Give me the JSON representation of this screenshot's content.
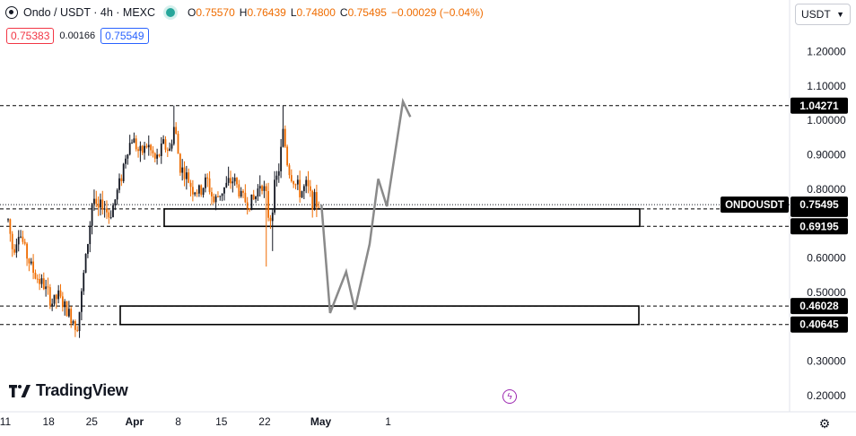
{
  "header": {
    "symbol": "Ondo / USDT · 4h · MEXC",
    "ohlc": [
      {
        "k": "O",
        "v": "0.75570"
      },
      {
        "k": "H",
        "v": "0.76439"
      },
      {
        "k": "L",
        "v": "0.74800"
      },
      {
        "k": "C",
        "v": "0.75495"
      },
      {
        "k": "",
        "v": "−0.00029 (−0.04%)"
      }
    ],
    "bid": "0.75383",
    "spread": "0.00166",
    "ask": "0.75549"
  },
  "currency_select": {
    "value": "USDT"
  },
  "branding": {
    "logo_text": "TradingView"
  },
  "colors": {
    "up": "#131722",
    "down": "#ef6c00",
    "zone": "#000000",
    "projection": "#8a8a8a"
  },
  "icons": {
    "symbol": "ondo-coin-icon",
    "settings": "gear-icon",
    "flash": "lightning-icon"
  },
  "chart_data": {
    "type": "candlestick",
    "symbol": "ONDOUSDT",
    "timeframe": "4h",
    "ylim": [
      0.17,
      1.26
    ],
    "y_ticks": [
      "1.20000",
      "1.10000",
      "1.00000",
      "0.90000",
      "0.80000",
      "0.70000",
      "0.60000",
      "0.50000",
      "0.40000",
      "0.30000",
      "0.20000"
    ],
    "x_ticks": [
      "11",
      "18",
      "25",
      "Apr",
      "8",
      "15",
      "22",
      "May",
      "1"
    ],
    "last_price": 0.75495,
    "price_label": "ONDOUSDT",
    "levels": [
      1.04271,
      0.74252,
      0.69195,
      0.46028,
      0.40645
    ],
    "level_labels": [
      "1.04271",
      "0.74252",
      "0.69195",
      "0.46028",
      "0.40645"
    ],
    "last_price_label": "0.75495",
    "zones": [
      {
        "top": 0.74252,
        "bottom": 0.69195
      },
      {
        "top": 0.46028,
        "bottom": 0.40645
      }
    ],
    "price_path": [
      [
        0.22,
        0.71
      ],
      [
        0.6,
        0.62
      ],
      [
        1.1,
        0.68
      ],
      [
        1.8,
        0.6
      ],
      [
        2.4,
        0.55
      ],
      [
        3.1,
        0.52
      ],
      [
        3.8,
        0.47
      ],
      [
        4.3,
        0.49
      ],
      [
        4.9,
        0.45
      ],
      [
        5.5,
        0.42
      ],
      [
        5.8,
        0.4
      ],
      [
        6.1,
        0.47
      ],
      [
        6.4,
        0.57
      ],
      [
        6.8,
        0.68
      ],
      [
        7.1,
        0.79
      ],
      [
        7.4,
        0.73
      ],
      [
        7.9,
        0.76
      ],
      [
        8.4,
        0.72
      ],
      [
        8.9,
        0.77
      ],
      [
        9.4,
        0.84
      ],
      [
        9.8,
        0.91
      ],
      [
        10.3,
        0.95
      ],
      [
        10.9,
        0.9
      ],
      [
        11.5,
        0.93
      ],
      [
        12.2,
        0.88
      ],
      [
        12.8,
        0.93
      ],
      [
        13.3,
        0.91
      ],
      [
        13.7,
        0.99
      ],
      [
        14.1,
        0.87
      ],
      [
        14.6,
        0.84
      ],
      [
        15.2,
        0.8
      ],
      [
        15.8,
        0.79
      ],
      [
        16.3,
        0.83
      ],
      [
        16.9,
        0.76
      ],
      [
        17.4,
        0.79
      ],
      [
        17.9,
        0.81
      ],
      [
        18.5,
        0.83
      ],
      [
        19.1,
        0.78
      ],
      [
        19.6,
        0.76
      ],
      [
        20.2,
        0.77
      ],
      [
        20.7,
        0.83
      ],
      [
        21.1,
        0.78
      ],
      [
        21.4,
        0.7
      ],
      [
        21.8,
        0.8
      ],
      [
        22.2,
        0.87
      ],
      [
        22.5,
        0.97
      ],
      [
        22.9,
        0.86
      ],
      [
        23.4,
        0.82
      ],
      [
        23.9,
        0.79
      ],
      [
        24.4,
        0.81
      ],
      [
        24.8,
        0.77
      ],
      [
        25.2,
        0.76
      ],
      [
        25.5,
        0.755
      ]
    ],
    "spikes": [
      {
        "t": 13.7,
        "high": 1.043
      },
      {
        "t": 22.5,
        "high": 1.043
      },
      {
        "t": 21.2,
        "low": 0.575
      },
      {
        "t": 21.7,
        "low": 0.62
      },
      {
        "t": 5.7,
        "low": 0.37
      }
    ],
    "projection": [
      [
        25.6,
        0.755
      ],
      [
        26.3,
        0.44
      ],
      [
        27.6,
        0.56
      ],
      [
        28.3,
        0.45
      ],
      [
        29.5,
        0.64
      ],
      [
        30.2,
        0.83
      ],
      [
        30.9,
        0.75
      ],
      [
        32.2,
        1.055
      ],
      [
        32.8,
        1.01
      ]
    ]
  }
}
